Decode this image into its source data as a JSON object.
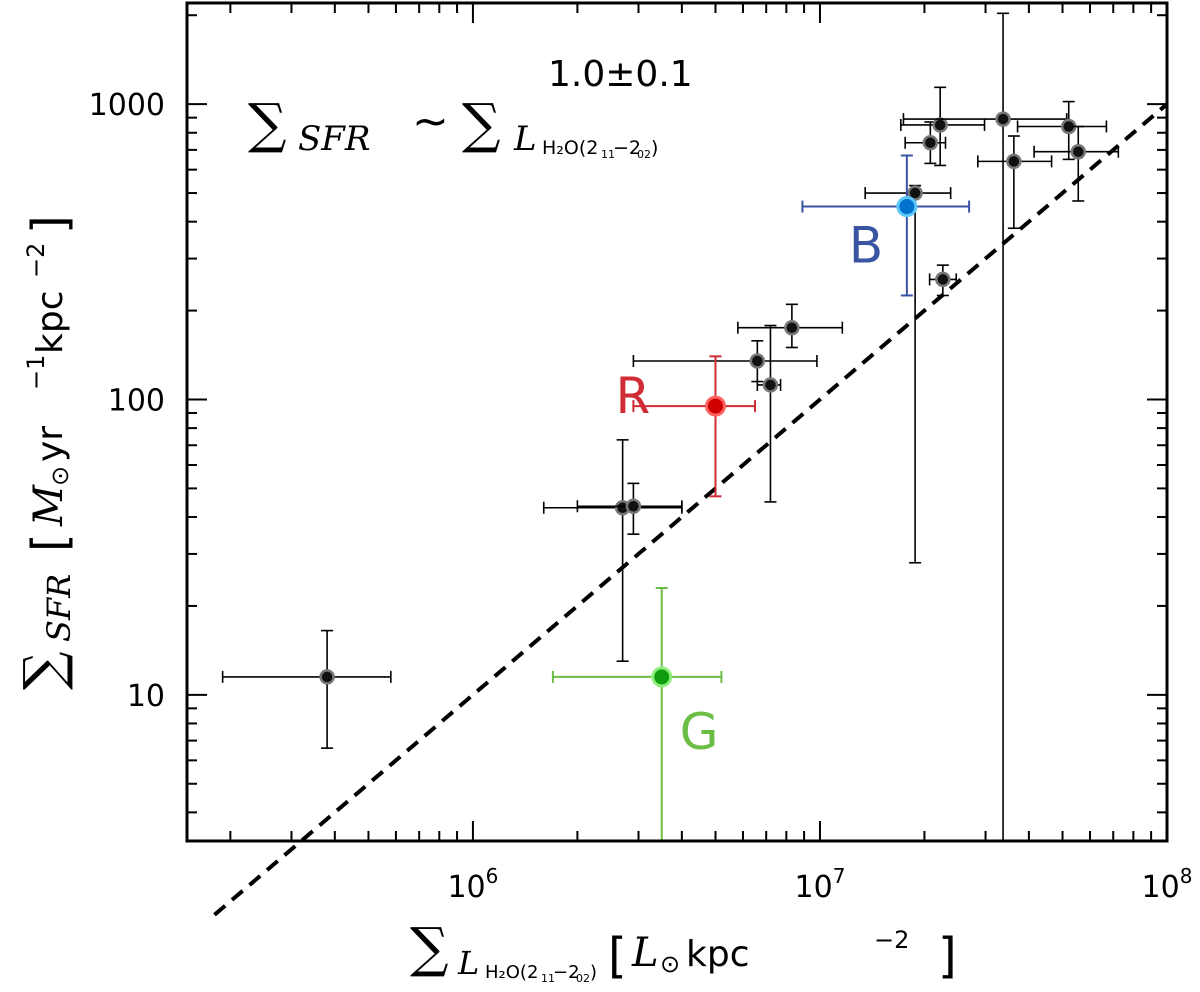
{
  "chart_data": {
    "type": "scatter",
    "xscale": "log",
    "yscale": "log",
    "xlim": [
      150000,
      100000000
    ],
    "ylim": [
      3.2,
      2200
    ],
    "grid": false,
    "legend": "none",
    "x_tick_labels": [
      {
        "value": 1000000,
        "base": "10",
        "exp": "6"
      },
      {
        "value": 10000000,
        "base": "10",
        "exp": "7"
      },
      {
        "value": 100000000,
        "base": "10",
        "exp": "8"
      }
    ],
    "y_tick_labels": [
      {
        "value": 10,
        "label": "10"
      },
      {
        "value": 100,
        "label": "100"
      },
      {
        "value": 1000,
        "label": "1000"
      }
    ],
    "xlabel": {
      "sigma": "∑",
      "sub_symbol": "L",
      "sub_molecule": "H₂O(2",
      "sub_t1": "11",
      "sub_dash": "−2",
      "sub_t2": "02",
      "sub_close": ")",
      "unit_open": "[",
      "unit_symbol": "L",
      "unit_sun": "⊙",
      "unit_text": " kpc",
      "unit_exp": "−2",
      "unit_close": "]"
    },
    "ylabel": {
      "sigma": "∑",
      "sub": "SFR",
      "unit_open": "[",
      "unit_symbol": "M",
      "unit_sun": "⊙",
      "unit_text1": " yr",
      "unit_exp1": "−1",
      "unit_text2": "kpc",
      "unit_exp2": "−2",
      "unit_close": "]"
    },
    "relation": {
      "lhs_sigma": "∑",
      "lhs_sub": "SFR",
      "tilde": "~",
      "rhs_sigma": "∑",
      "rhs_sub_symbol": "L",
      "rhs_sub_molecule": "H₂O(2",
      "rhs_sub_t1": "11",
      "rhs_sub_dash": "−2",
      "rhs_sub_t2": "02",
      "rhs_sub_close": ")",
      "exponent": "1.0±0.1"
    },
    "fit_line": {
      "slope": 1.0,
      "intercept_log": -5.0,
      "x_range": [
        180000,
        100000000
      ],
      "style": "dashed",
      "color": "#000000"
    },
    "series": [
      {
        "color": "#000000",
        "marker_fill": "#111111",
        "marker_edge": "#777777",
        "points": [
          {
            "x": 380000,
            "y": 11.5,
            "xerr": [
              190000,
              580000
            ],
            "yerr": [
              6.6,
              16.5
            ]
          },
          {
            "x": 2700000,
            "y": 43,
            "xerr": [
              1600000,
              4000000
            ],
            "yerr": [
              13,
              73
            ]
          },
          {
            "x": 2900000,
            "y": 43.5,
            "xerr": [
              2000000,
              4000000
            ],
            "yerr": [
              35,
              52
            ]
          },
          {
            "x": 6600000,
            "y": 135,
            "xerr": [
              2900000,
              9800000
            ],
            "yerr": [
              115,
              158
            ]
          },
          {
            "x": 7200000,
            "y": 112,
            "xerr": [
              6600000,
              7700000
            ],
            "yerr": [
              45,
              178
            ]
          },
          {
            "x": 8300000,
            "y": 175,
            "xerr": [
              5800000,
              11600000
            ],
            "yerr": [
              150,
              210
            ]
          },
          {
            "x": 18800000,
            "y": 500,
            "xerr": [
              13500000,
              23800000
            ],
            "yerr": [
              28,
              530
            ]
          },
          {
            "x": 20800000,
            "y": 740,
            "xerr": [
              17600000,
              23000000
            ],
            "yerr": [
              630,
              870
            ]
          },
          {
            "x": 22200000,
            "y": 850,
            "xerr": [
              17100000,
              29800000
            ],
            "yerr": [
              620,
              1140
            ]
          },
          {
            "x": 22600000,
            "y": 255,
            "xerr": [
              20700000,
              24700000
            ],
            "yerr": [
              225,
              285
            ]
          },
          {
            "x": 33700000,
            "y": 890,
            "xerr": [
              17400000,
              51400000
            ],
            "yerr": [
              3.2,
              2030
            ]
          },
          {
            "x": 36200000,
            "y": 640,
            "xerr": [
              28500000,
              46500000
            ],
            "yerr": [
              380,
              780
            ]
          },
          {
            "x": 52100000,
            "y": 840,
            "xerr": [
              37100000,
              66900000
            ],
            "yerr": [
              650,
              1020
            ]
          },
          {
            "x": 55500000,
            "y": 690,
            "xerr": [
              41400000,
              72400000
            ],
            "yerr": [
              470,
              840
            ]
          }
        ]
      },
      {
        "color": "#3a54a4",
        "marker_fill": "#0072ce",
        "marker_edge": "#5ac8fa",
        "label": "B",
        "points": [
          {
            "x": 17800000,
            "y": 450,
            "xerr": [
              8900000,
              26900000
            ],
            "yerr": [
              225,
              670
            ]
          }
        ]
      },
      {
        "color": "#d12b35",
        "marker_fill": "#d10000",
        "marker_edge": "#ff6060",
        "label": "R",
        "points": [
          {
            "x": 5000000,
            "y": 95,
            "xerr": [
              2900000,
              6500000
            ],
            "yerr": [
              47,
              140
            ]
          }
        ]
      },
      {
        "color": "#6cbd45",
        "marker_fill": "#0f9d0f",
        "marker_edge": "#8cf07a",
        "label": "G",
        "points": [
          {
            "x": 3500000,
            "y": 11.5,
            "xerr": [
              1700000,
              5200000
            ],
            "yerr": [
              3.2,
              23
            ]
          }
        ]
      }
    ]
  }
}
